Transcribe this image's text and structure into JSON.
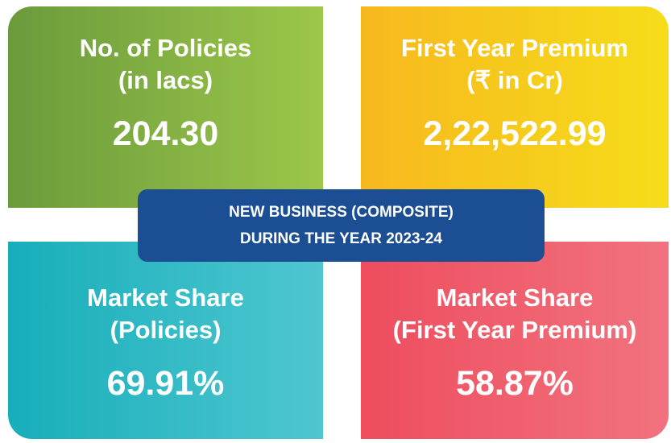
{
  "center": {
    "line1": "NEW BUSINESS (COMPOSITE)",
    "line2": "DURING THE YEAR 2023-24"
  },
  "tiles": [
    {
      "title1": "No. of Policies",
      "title2": "(in lacs)",
      "value": "204.30"
    },
    {
      "title1": "First Year Premium",
      "title2": "(₹ in Cr)",
      "value": "2,22,522.99"
    },
    {
      "title1": "Market Share",
      "title2": "(Policies)",
      "value": "69.91%"
    },
    {
      "title1": "Market Share",
      "title2": "(First Year Premium)",
      "value": "58.87%"
    }
  ]
}
